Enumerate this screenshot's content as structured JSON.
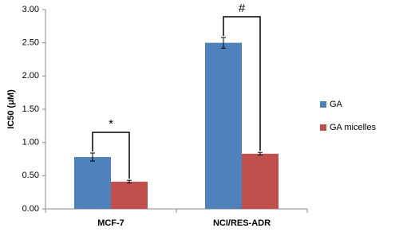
{
  "chart_data": {
    "type": "bar",
    "y_label": "IC50 (μM)",
    "categories": [
      "MCF-7",
      "NCI/RES-ADR"
    ],
    "series": [
      {
        "name": "GA",
        "color": "#4f81bd",
        "values": [
          0.78,
          2.5
        ],
        "errors": [
          0.06,
          0.08
        ]
      },
      {
        "name": "GA micelles",
        "color": "#c0504d",
        "values": [
          0.41,
          0.83
        ],
        "errors": [
          0.02,
          0.02
        ]
      }
    ],
    "annotations": [
      "*",
      "#"
    ],
    "ylim": [
      0,
      3
    ],
    "yticks": [
      {
        "value": 0,
        "label": "0.00"
      },
      {
        "value": 0.5,
        "label": "0.50"
      },
      {
        "value": 1,
        "label": "1.00"
      },
      {
        "value": 1.5,
        "label": "1.50"
      },
      {
        "value": 2,
        "label": "2.00"
      },
      {
        "value": 2.5,
        "label": "2.50"
      },
      {
        "value": 3,
        "label": "3.00"
      }
    ],
    "grid": false,
    "legend": "right"
  }
}
